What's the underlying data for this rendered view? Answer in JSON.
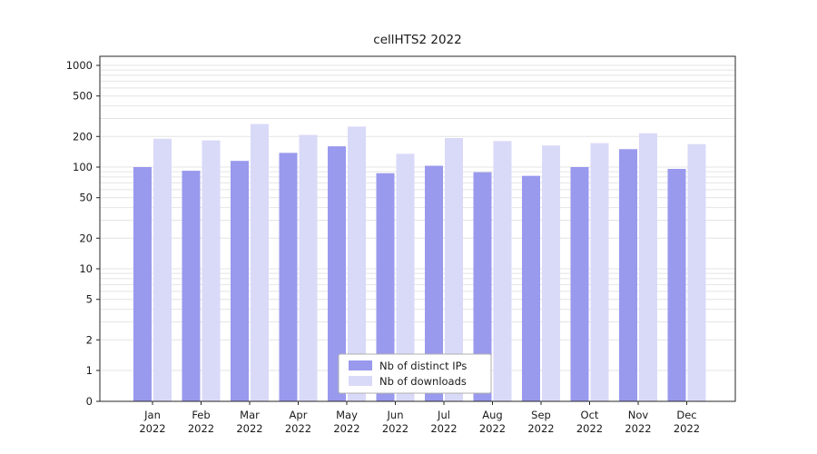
{
  "chart_data": {
    "type": "bar",
    "title": "cellHTS2 2022",
    "categories": [
      "Jan 2022",
      "Feb 2022",
      "Mar 2022",
      "Apr 2022",
      "May 2022",
      "Jun 2022",
      "Jul 2022",
      "Aug 2022",
      "Sep 2022",
      "Oct 2022",
      "Nov 2022",
      "Dec 2022"
    ],
    "month_labels": [
      "Jan",
      "Feb",
      "Mar",
      "Apr",
      "May",
      "Jun",
      "Jul",
      "Aug",
      "Sep",
      "Oct",
      "Nov",
      "Dec"
    ],
    "year": "2022",
    "series": [
      {
        "name": "Nb of distinct IPs",
        "color": "#9999ee",
        "values": [
          100,
          92,
          115,
          138,
          160,
          87,
          103,
          89,
          82,
          100,
          150,
          96
        ]
      },
      {
        "name": "Nb of downloads",
        "color": "#d9d9f8",
        "values": [
          190,
          183,
          265,
          207,
          250,
          135,
          193,
          180,
          163,
          172,
          215,
          168
        ]
      }
    ],
    "yscale": "log",
    "ytick_values": [
      0,
      1,
      2,
      5,
      10,
      20,
      50,
      100,
      200,
      500,
      1000
    ],
    "ytick_labels": [
      "0",
      "1",
      "2",
      "5",
      "10",
      "20",
      "50",
      "100",
      "200",
      "500",
      "1000"
    ],
    "ylim": [
      0,
      1250
    ],
    "grid": true,
    "legend": {
      "position": "lower center",
      "entries": [
        "Nb of distinct IPs",
        "Nb of downloads"
      ]
    }
  }
}
